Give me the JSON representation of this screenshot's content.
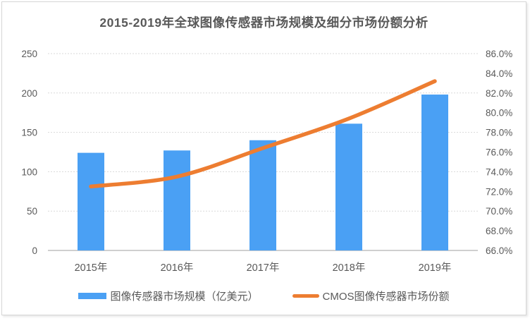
{
  "title": "2015-2019年全球图像传感器市场规模及细分市场份额分析",
  "chart_data": {
    "type": "bar+line",
    "categories": [
      "2015年",
      "2016年",
      "2017年",
      "2018年",
      "2019年"
    ],
    "series": [
      {
        "name": "图像传感器市场规模（亿美元）",
        "type": "bar",
        "axis": "left",
        "values": [
          124,
          127,
          140,
          161,
          198
        ],
        "color": "#4aa0f4"
      },
      {
        "name": "CMOS图像传感器市场份额",
        "type": "line",
        "axis": "right",
        "unit": "%",
        "values": [
          72.5,
          73.5,
          76.4,
          79.4,
          83.2
        ],
        "color": "#ED7D31"
      }
    ],
    "left_axis": {
      "min": 0,
      "max": 250,
      "ticks": [
        "0",
        "50",
        "100",
        "150",
        "200",
        "250"
      ]
    },
    "right_axis": {
      "min": 66,
      "max": 86,
      "ticks": [
        "66.0%",
        "68.0%",
        "70.0%",
        "72.0%",
        "74.0%",
        "76.0%",
        "78.0%",
        "80.0%",
        "82.0%",
        "84.0%",
        "86.0%"
      ]
    },
    "grid": "horizontal-dashed",
    "legend_position": "bottom"
  },
  "legend": {
    "items": [
      {
        "label": "图像传感器市场规模（亿美元）",
        "swatch": "bar",
        "color": "#4aa0f4"
      },
      {
        "label": "CMOS图像传感器市场份额",
        "swatch": "line",
        "color": "#ED7D31"
      }
    ]
  },
  "colors": {
    "bar_blue": "#4aa0f4",
    "line_orange": "#ED7D31",
    "text_gray": "#595959",
    "gridline": "#d9d9d9",
    "axis_line": "#bfbfbf",
    "card_border": "#d6d6d6",
    "background": "#ffffff"
  }
}
